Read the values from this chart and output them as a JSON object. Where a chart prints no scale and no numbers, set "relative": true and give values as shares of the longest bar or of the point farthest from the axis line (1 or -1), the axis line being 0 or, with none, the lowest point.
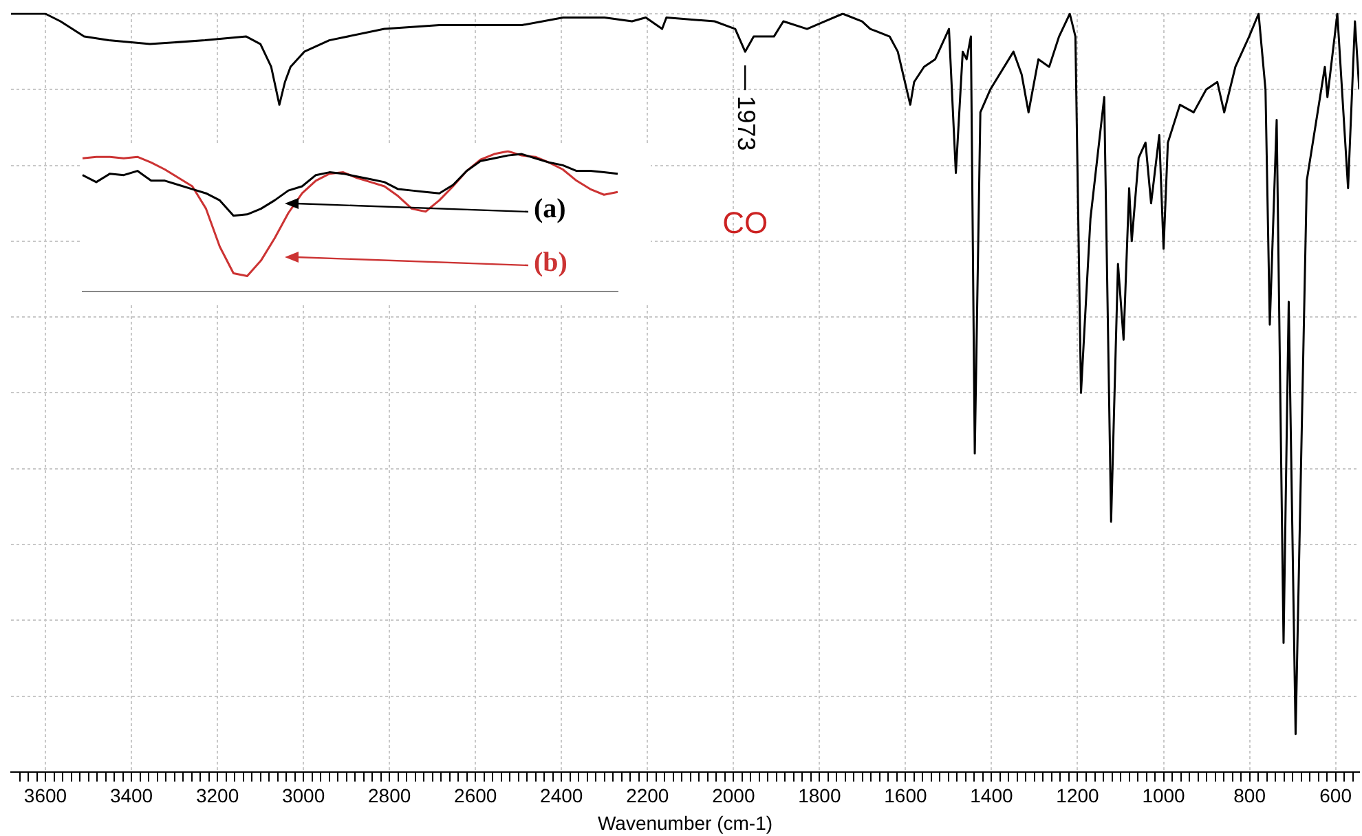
{
  "chart_data": [
    {
      "type": "line",
      "xlabel": "Wavenumber (cm-1)",
      "relative": true,
      "grid": true,
      "legend": false,
      "marker": "none",
      "line_style": "solid",
      "xlim": [
        3680,
        545
      ],
      "xticks": [
        {
          "value": 3660,
          "label": null
        },
        {
          "value": 3640,
          "label": null
        },
        {
          "value": 3620,
          "label": null
        },
        3600,
        {
          "value": 3580,
          "label": null
        },
        {
          "value": 3560,
          "label": null
        },
        {
          "value": 3540,
          "label": null
        },
        {
          "value": 3520,
          "label": null
        },
        {
          "value": 3500,
          "label": null
        },
        {
          "value": 3480,
          "label": null
        },
        {
          "value": 3460,
          "label": null
        },
        {
          "value": 3440,
          "label": null
        },
        {
          "value": 3420,
          "label": null
        },
        3400,
        {
          "value": 3380,
          "label": null
        },
        {
          "value": 3360,
          "label": null
        },
        {
          "value": 3340,
          "label": null
        },
        {
          "value": 3320,
          "label": null
        },
        {
          "value": 3300,
          "label": null
        },
        {
          "value": 3280,
          "label": null
        },
        {
          "value": 3260,
          "label": null
        },
        {
          "value": 3240,
          "label": null
        },
        {
          "value": 3220,
          "label": null
        },
        3200,
        {
          "value": 3180,
          "label": null
        },
        {
          "value": 3160,
          "label": null
        },
        {
          "value": 3140,
          "label": null
        },
        {
          "value": 3120,
          "label": null
        },
        {
          "value": 3100,
          "label": null
        },
        {
          "value": 3080,
          "label": null
        },
        {
          "value": 3060,
          "label": null
        },
        {
          "value": 3040,
          "label": null
        },
        {
          "value": 3020,
          "label": null
        },
        3000,
        {
          "value": 2980,
          "label": null
        },
        {
          "value": 2960,
          "label": null
        },
        {
          "value": 2940,
          "label": null
        },
        {
          "value": 2920,
          "label": null
        },
        {
          "value": 2900,
          "label": null
        },
        {
          "value": 2880,
          "label": null
        },
        {
          "value": 2860,
          "label": null
        },
        {
          "value": 2840,
          "label": null
        },
        {
          "value": 2820,
          "label": null
        },
        2800,
        {
          "value": 2780,
          "label": null
        },
        {
          "value": 2760,
          "label": null
        },
        {
          "value": 2740,
          "label": null
        },
        {
          "value": 2720,
          "label": null
        },
        {
          "value": 2700,
          "label": null
        },
        {
          "value": 2680,
          "label": null
        },
        {
          "value": 2660,
          "label": null
        },
        {
          "value": 2640,
          "label": null
        },
        {
          "value": 2620,
          "label": null
        },
        2600,
        {
          "value": 2580,
          "label": null
        },
        {
          "value": 2560,
          "label": null
        },
        {
          "value": 2540,
          "label": null
        },
        {
          "value": 2520,
          "label": null
        },
        {
          "value": 2500,
          "label": null
        },
        {
          "value": 2480,
          "label": null
        },
        {
          "value": 2460,
          "label": null
        },
        {
          "value": 2440,
          "label": null
        },
        {
          "value": 2420,
          "label": null
        },
        2400,
        {
          "value": 2380,
          "label": null
        },
        {
          "value": 2360,
          "label": null
        },
        {
          "value": 2340,
          "label": null
        },
        {
          "value": 2320,
          "label": null
        },
        {
          "value": 2300,
          "label": null
        },
        {
          "value": 2280,
          "label": null
        },
        {
          "value": 2260,
          "label": null
        },
        {
          "value": 2240,
          "label": null
        },
        {
          "value": 2220,
          "label": null
        },
        2200,
        {
          "value": 2180,
          "label": null
        },
        {
          "value": 2160,
          "label": null
        },
        {
          "value": 2140,
          "label": null
        },
        {
          "value": 2120,
          "label": null
        },
        {
          "value": 2100,
          "label": null
        },
        {
          "value": 2080,
          "label": null
        },
        {
          "value": 2060,
          "label": null
        },
        {
          "value": 2040,
          "label": null
        },
        {
          "value": 2020,
          "label": null
        },
        2000,
        {
          "value": 1980,
          "label": null
        },
        {
          "value": 1960,
          "label": null
        },
        {
          "value": 1940,
          "label": null
        },
        {
          "value": 1920,
          "label": null
        },
        {
          "value": 1900,
          "label": null
        },
        {
          "value": 1880,
          "label": null
        },
        {
          "value": 1860,
          "label": null
        },
        {
          "value": 1840,
          "label": null
        },
        {
          "value": 1820,
          "label": null
        },
        1800,
        {
          "value": 1780,
          "label": null
        },
        {
          "value": 1760,
          "label": null
        },
        {
          "value": 1740,
          "label": null
        },
        {
          "value": 1720,
          "label": null
        },
        {
          "value": 1700,
          "label": null
        },
        {
          "value": 1680,
          "label": null
        },
        {
          "value": 1660,
          "label": null
        },
        {
          "value": 1640,
          "label": null
        },
        {
          "value": 1620,
          "label": null
        },
        1600,
        {
          "value": 1580,
          "label": null
        },
        {
          "value": 1560,
          "label": null
        },
        {
          "value": 1540,
          "label": null
        },
        {
          "value": 1520,
          "label": null
        },
        {
          "value": 1500,
          "label": null
        },
        {
          "value": 1480,
          "label": null
        },
        {
          "value": 1460,
          "label": null
        },
        {
          "value": 1440,
          "label": null
        },
        {
          "value": 1420,
          "label": null
        },
        1400,
        {
          "value": 1380,
          "label": null
        },
        {
          "value": 1360,
          "label": null
        },
        {
          "value": 1340,
          "label": null
        },
        {
          "value": 1320,
          "label": null
        },
        {
          "value": 1300,
          "label": null
        },
        {
          "value": 1280,
          "label": null
        },
        {
          "value": 1260,
          "label": null
        },
        {
          "value": 1240,
          "label": null
        },
        {
          "value": 1220,
          "label": null
        },
        1200,
        {
          "value": 1180,
          "label": null
        },
        {
          "value": 1160,
          "label": null
        },
        {
          "value": 1140,
          "label": null
        },
        {
          "value": 1120,
          "label": null
        },
        {
          "value": 1100,
          "label": null
        },
        {
          "value": 1080,
          "label": null
        },
        {
          "value": 1060,
          "label": null
        },
        {
          "value": 1040,
          "label": null
        },
        {
          "value": 1020,
          "label": null
        },
        1000,
        {
          "value": 980,
          "label": null
        },
        {
          "value": 960,
          "label": null
        },
        {
          "value": 940,
          "label": null
        },
        {
          "value": 920,
          "label": null
        },
        {
          "value": 900,
          "label": null
        },
        {
          "value": 880,
          "label": null
        },
        {
          "value": 860,
          "label": null
        },
        {
          "value": 840,
          "label": null
        },
        {
          "value": 820,
          "label": null
        },
        800,
        {
          "value": 780,
          "label": null
        },
        {
          "value": 760,
          "label": null
        },
        {
          "value": 740,
          "label": null
        },
        {
          "value": 720,
          "label": null
        },
        {
          "value": 700,
          "label": null
        },
        {
          "value": 680,
          "label": null
        },
        {
          "value": 660,
          "label": null
        },
        {
          "value": 640,
          "label": null
        },
        {
          "value": 620,
          "label": null
        },
        600,
        {
          "value": 580,
          "label": null
        },
        {
          "value": 560,
          "label": null
        }
      ],
      "x": [
        3680,
        3600,
        3565,
        3510,
        3453,
        3357,
        3229,
        3133,
        3100,
        3075,
        3056,
        3043,
        3030,
        2998,
        2940,
        2812,
        2684,
        2588,
        2492,
        2396,
        2300,
        2236,
        2204,
        2166,
        2156,
        2044,
        1996,
        1973,
        1953,
        1929,
        1906,
        1884,
        1829,
        1788,
        1746,
        1701,
        1682,
        1637,
        1618,
        1589,
        1580,
        1557,
        1531,
        1499,
        1483,
        1467,
        1458,
        1448,
        1439,
        1426,
        1403,
        1349,
        1330,
        1314,
        1291,
        1266,
        1243,
        1218,
        1205,
        1192,
        1170,
        1138,
        1122,
        1106,
        1093,
        1080,
        1074,
        1058,
        1042,
        1029,
        1010,
        1000,
        990,
        962,
        930,
        901,
        875,
        859,
        833,
        801,
        779,
        763,
        753,
        737,
        721,
        709,
        693,
        667,
        625,
        619,
        596,
        571,
        555,
        545
      ],
      "series": [
        {
          "color": "#000000",
          "values": [
            1.0,
            1.0,
            0.99,
            0.97,
            0.965,
            0.96,
            0.965,
            0.97,
            0.96,
            0.93,
            0.88,
            0.91,
            0.93,
            0.95,
            0.965,
            0.98,
            0.985,
            0.985,
            0.985,
            0.995,
            0.995,
            0.99,
            0.995,
            0.98,
            0.995,
            0.99,
            0.98,
            0.95,
            0.97,
            0.97,
            0.97,
            0.99,
            0.98,
            0.99,
            1.0,
            0.99,
            0.98,
            0.97,
            0.95,
            0.88,
            0.91,
            0.93,
            0.94,
            0.98,
            0.79,
            0.95,
            0.94,
            0.97,
            0.42,
            0.87,
            0.9,
            0.95,
            0.92,
            0.87,
            0.94,
            0.93,
            0.97,
            1.0,
            0.97,
            0.5,
            0.73,
            0.89,
            0.33,
            0.67,
            0.57,
            0.77,
            0.7,
            0.81,
            0.83,
            0.75,
            0.84,
            0.69,
            0.83,
            0.88,
            0.87,
            0.9,
            0.91,
            0.87,
            0.93,
            0.97,
            1.0,
            0.9,
            0.59,
            0.86,
            0.17,
            0.62,
            0.05,
            0.78,
            0.93,
            0.89,
            1.0,
            0.77,
            0.99,
            0.9
          ]
        }
      ],
      "annotations": [
        {
          "text": "1973",
          "x": 1973,
          "y": 0.95
        },
        "CO"
      ]
    },
    {
      "type": "line",
      "relative": true,
      "legend": false,
      "tick_labels": false,
      "marker": "none",
      "line_style": "solid",
      "categories": [
        null,
        null,
        null,
        null,
        null,
        null,
        null,
        null,
        null,
        null,
        null,
        null,
        null,
        null,
        null,
        null,
        null,
        null,
        null,
        null,
        null,
        null,
        null,
        null,
        null,
        null,
        null,
        null,
        null,
        null,
        null,
        null,
        null,
        null,
        null,
        null,
        null,
        null,
        null,
        null
      ],
      "series": [
        {
          "name": "(a)",
          "color": "#000000",
          "values": [
            0.83,
            0.78,
            0.84,
            0.83,
            0.86,
            0.79,
            0.79,
            0.76,
            0.73,
            0.7,
            0.65,
            0.54,
            0.55,
            0.59,
            0.65,
            0.72,
            0.75,
            0.83,
            0.85,
            0.84,
            0.82,
            0.8,
            0.78,
            0.73,
            0.72,
            0.71,
            0.7,
            0.76,
            0.86,
            0.93,
            0.95,
            0.97,
            0.98,
            0.95,
            0.92,
            0.9,
            0.86,
            0.86,
            0.85,
            0.84
          ]
        },
        {
          "name": "(b)",
          "color": "#cc3333",
          "values": [
            0.95,
            0.96,
            0.96,
            0.95,
            0.96,
            0.92,
            0.87,
            0.81,
            0.75,
            0.59,
            0.32,
            0.13,
            0.11,
            0.22,
            0.38,
            0.56,
            0.7,
            0.79,
            0.84,
            0.85,
            0.81,
            0.78,
            0.75,
            0.68,
            0.59,
            0.57,
            0.65,
            0.75,
            0.86,
            0.94,
            0.98,
            1.0,
            0.97,
            0.96,
            0.92,
            0.87,
            0.79,
            0.73,
            0.69,
            0.71
          ]
        }
      ]
    }
  ]
}
